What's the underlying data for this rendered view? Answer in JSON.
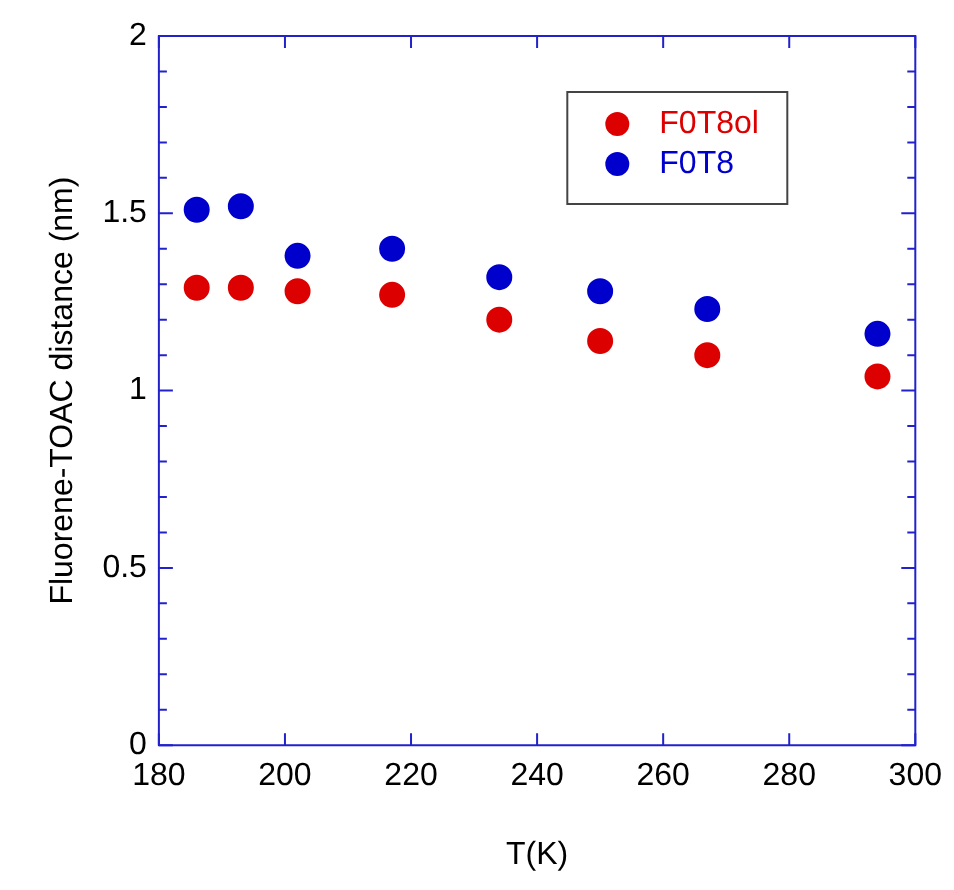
{
  "chart_data": {
    "type": "scatter",
    "xlabel": "T(K)",
    "ylabel": "Fluorene-TOAC distance (nm)",
    "x": [
      186,
      193,
      202,
      217,
      234,
      250,
      267,
      294
    ],
    "series": [
      {
        "name": "F0T8ol",
        "color": "#dd0000",
        "values": [
          1.29,
          1.29,
          1.28,
          1.27,
          1.2,
          1.14,
          1.1,
          1.04
        ]
      },
      {
        "name": "F0T8",
        "color": "#0000cc",
        "values": [
          1.51,
          1.52,
          1.38,
          1.4,
          1.32,
          1.28,
          1.23,
          1.16
        ]
      }
    ],
    "xlim": [
      180,
      300
    ],
    "xticks": [
      180,
      200,
      220,
      240,
      260,
      280,
      300
    ],
    "ylim": [
      0,
      2
    ],
    "yticks": [
      0,
      {
        "value": 0.1,
        "label": null
      },
      {
        "value": 0.2,
        "label": null
      },
      {
        "value": 0.3,
        "label": null
      },
      {
        "value": 0.4,
        "label": null
      },
      0.5,
      {
        "value": 0.6,
        "label": null
      },
      {
        "value": 0.7,
        "label": null
      },
      {
        "value": 0.8,
        "label": null
      },
      {
        "value": 0.9,
        "label": null
      },
      1,
      {
        "value": 1.1,
        "label": null
      },
      {
        "value": 1.2,
        "label": null
      },
      {
        "value": 1.3,
        "label": null
      },
      {
        "value": 1.4,
        "label": null
      },
      1.5,
      {
        "value": 1.6,
        "label": null
      },
      {
        "value": 1.7,
        "label": null
      },
      {
        "value": 1.8,
        "label": null
      },
      {
        "value": 1.9,
        "label": null
      },
      2
    ],
    "grid": false,
    "legend": "top right",
    "marker": "circle"
  }
}
